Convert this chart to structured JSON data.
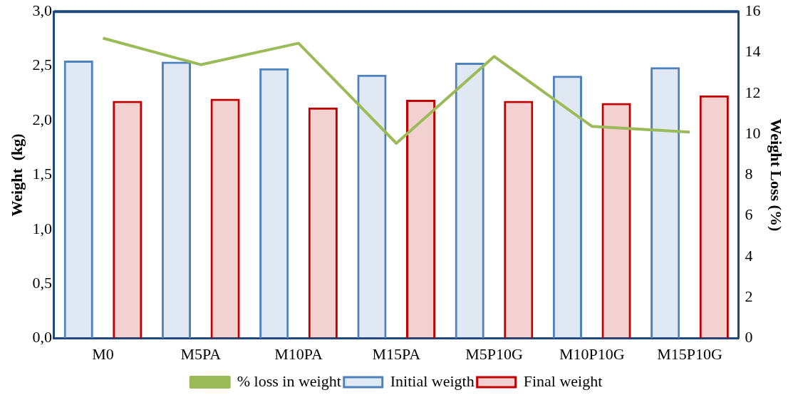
{
  "chart_data": {
    "type": "bar",
    "ylabel": "Weight  (kg)",
    "y2label": "Weight Loss (%)",
    "categories": [
      "M0",
      "M5PA",
      "M10PA",
      "M15PA",
      "M5P10G",
      "M10P10G",
      "M15P10G"
    ],
    "series": [
      {
        "name": "Initial weigth",
        "color": "#4f81bd",
        "values": [
          2.55,
          2.54,
          2.48,
          2.42,
          2.53,
          2.41,
          2.49
        ]
      },
      {
        "name": "Final weight",
        "color": "#c00000",
        "values": [
          2.18,
          2.2,
          2.12,
          2.19,
          2.18,
          2.16,
          2.23
        ]
      },
      {
        "name": "% loss in weight",
        "type": "line",
        "axis": "y2",
        "color": "#9bbb59",
        "values": [
          14.7,
          13.4,
          14.45,
          9.55,
          13.8,
          10.38,
          10.1
        ]
      }
    ],
    "ylim": [
      0,
      3
    ],
    "yticks": [
      {
        "value": 0,
        "label": "0,0"
      },
      {
        "value": 0.5,
        "label": "0,5"
      },
      {
        "value": 1,
        "label": "1,0"
      },
      {
        "value": 1.5,
        "label": "1,5"
      },
      {
        "value": 2,
        "label": "2,0"
      },
      {
        "value": 2.5,
        "label": "2,5"
      },
      {
        "value": 3,
        "label": "3,0"
      }
    ],
    "y2lim": [
      0,
      16
    ],
    "y2ticks": [
      0,
      2,
      4,
      6,
      8,
      10,
      12,
      14,
      16
    ],
    "grid": false,
    "legend": "bottom",
    "marker": "none"
  }
}
